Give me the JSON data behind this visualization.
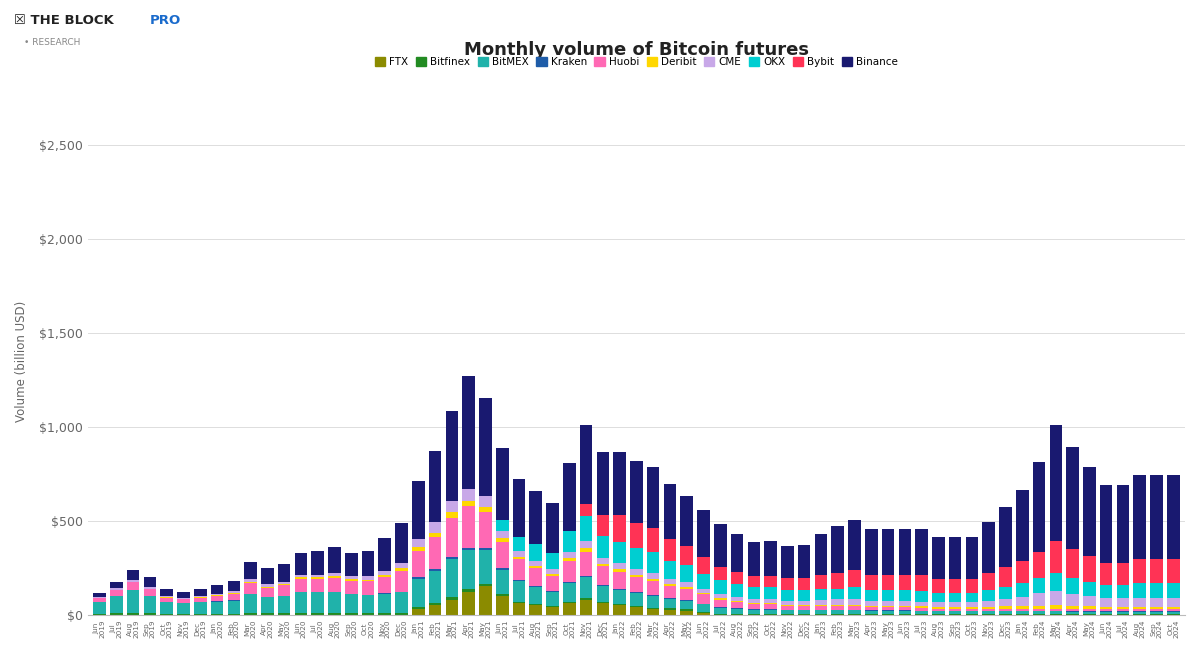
{
  "title": "Monthly volume of Bitcoin futures",
  "ylabel": "Volume (billion USD)",
  "exchanges": [
    "FTX",
    "Bitfinex",
    "BitMEX",
    "Kraken",
    "Huobi",
    "Deribit",
    "CME",
    "OKX",
    "Bybit",
    "Binance"
  ],
  "colors": {
    "FTX": "#8B8B00",
    "Bitfinex": "#228B22",
    "BitMEX": "#20B2AA",
    "Kraken": "#1E5CA8",
    "Huobi": "#FF69B4",
    "Deribit": "#FFD700",
    "CME": "#C8A8E8",
    "OKX": "#00CED1",
    "Bybit": "#FF3355",
    "Binance": "#191970"
  },
  "months": [
    "Jun\n2019",
    "Jul\n2019",
    "Aug\n2019",
    "Sep\n2019",
    "Oct\n2019",
    "Nov\n2019",
    "Dec\n2019",
    "Jan\n2020",
    "Feb\n2020",
    "Mar\n2020",
    "Apr\n2020",
    "May\n2020",
    "Jun\n2020",
    "Jul\n2020",
    "Aug\n2020",
    "Sep\n2020",
    "Oct\n2020",
    "Nov\n2020",
    "Dec\n2020",
    "Jan\n2021",
    "Feb\n2021",
    "Mar\n2021",
    "Apr\n2021",
    "May\n2021",
    "Jun\n2021",
    "Jul\n2021",
    "Aug\n2021",
    "Sep\n2021",
    "Oct\n2021",
    "Nov\n2021",
    "Dec\n2021",
    "Jan\n2022",
    "Feb\n2022",
    "Mar\n2022",
    "Apr\n2022",
    "May\n2022",
    "Jun\n2022",
    "Jul\n2022",
    "Aug\n2022",
    "Sep\n2022",
    "Oct\n2022",
    "Nov\n2022",
    "Dec\n2022",
    "Jan\n2023",
    "Feb\n2023",
    "Mar\n2023",
    "Apr\n2023",
    "May\n2023",
    "Jun\n2023",
    "Jul\n2023",
    "Aug\n2023",
    "Sep\n2023",
    "Oct\n2023",
    "Nov\n2023",
    "Dec\n2023",
    "Jan\n2024",
    "Feb\n2024",
    "Mar\n2024",
    "Apr\n2024",
    "May\n2024",
    "Jun\n2024",
    "Jul\n2024",
    "Aug\n2024",
    "Sep\n2024",
    "Oct\n2024"
  ],
  "data": {
    "FTX": [
      0,
      0,
      0,
      0,
      0,
      0,
      0,
      0,
      0,
      0,
      0,
      0,
      0,
      0,
      0,
      0,
      0,
      0,
      0,
      30,
      50,
      80,
      120,
      150,
      100,
      60,
      50,
      40,
      60,
      80,
      60,
      50,
      40,
      30,
      25,
      20,
      10,
      0,
      0,
      0,
      0,
      0,
      0,
      0,
      0,
      0,
      0,
      0,
      0,
      0,
      0,
      0,
      0,
      0,
      0,
      0,
      0,
      0,
      0,
      0,
      0,
      0,
      0,
      0,
      0
    ],
    "Bitfinex": [
      5,
      8,
      10,
      8,
      5,
      5,
      5,
      5,
      5,
      8,
      8,
      8,
      8,
      8,
      8,
      8,
      8,
      8,
      8,
      10,
      12,
      15,
      15,
      15,
      10,
      8,
      8,
      8,
      10,
      10,
      8,
      8,
      8,
      8,
      8,
      8,
      5,
      5,
      5,
      5,
      5,
      5,
      5,
      5,
      5,
      5,
      5,
      5,
      5,
      5,
      5,
      5,
      5,
      5,
      5,
      5,
      5,
      5,
      5,
      5,
      5,
      5,
      5,
      5,
      5
    ],
    "BitMEX": [
      60,
      90,
      120,
      90,
      60,
      55,
      60,
      65,
      70,
      100,
      85,
      90,
      110,
      110,
      110,
      100,
      95,
      100,
      110,
      150,
      170,
      200,
      210,
      180,
      130,
      110,
      90,
      75,
      100,
      110,
      85,
      75,
      65,
      60,
      50,
      45,
      40,
      32,
      25,
      22,
      22,
      18,
      18,
      18,
      18,
      18,
      15,
      15,
      15,
      14,
      12,
      12,
      12,
      12,
      12,
      12,
      12,
      12,
      10,
      10,
      10,
      10,
      10,
      10,
      10
    ],
    "Kraken": [
      2,
      3,
      3,
      3,
      2,
      2,
      2,
      2,
      3,
      4,
      3,
      3,
      4,
      4,
      4,
      4,
      4,
      5,
      5,
      8,
      10,
      12,
      12,
      12,
      8,
      6,
      5,
      5,
      6,
      6,
      5,
      5,
      5,
      5,
      4,
      4,
      3,
      3,
      3,
      3,
      3,
      3,
      3,
      3,
      3,
      3,
      3,
      3,
      3,
      3,
      3,
      3,
      3,
      3,
      3,
      3,
      3,
      3,
      3,
      3,
      3,
      3,
      3,
      3,
      3
    ],
    "Huobi": [
      20,
      28,
      40,
      35,
      24,
      20,
      24,
      28,
      32,
      55,
      48,
      55,
      70,
      70,
      75,
      68,
      72,
      90,
      110,
      140,
      170,
      210,
      220,
      190,
      140,
      110,
      95,
      80,
      110,
      130,
      100,
      90,
      80,
      75,
      65,
      60,
      50,
      40,
      32,
      25,
      25,
      20,
      20,
      20,
      20,
      20,
      16,
      16,
      16,
      14,
      12,
      12,
      12,
      12,
      12,
      12,
      10,
      10,
      10,
      10,
      10,
      10,
      10,
      10,
      10
    ],
    "Deribit": [
      2,
      3,
      3,
      3,
      2,
      2,
      2,
      3,
      4,
      6,
      5,
      6,
      6,
      6,
      8,
      8,
      8,
      10,
      14,
      20,
      25,
      30,
      30,
      28,
      20,
      14,
      12,
      10,
      14,
      18,
      14,
      14,
      14,
      14,
      12,
      12,
      8,
      7,
      7,
      7,
      7,
      7,
      7,
      7,
      7,
      7,
      7,
      7,
      7,
      8,
      8,
      8,
      8,
      10,
      12,
      14,
      18,
      20,
      18,
      16,
      14,
      14,
      15,
      15,
      15
    ],
    "CME": [
      5,
      8,
      8,
      8,
      6,
      5,
      6,
      8,
      10,
      15,
      12,
      12,
      15,
      15,
      18,
      18,
      18,
      22,
      28,
      45,
      55,
      60,
      65,
      58,
      38,
      30,
      25,
      25,
      32,
      40,
      32,
      32,
      32,
      32,
      28,
      25,
      22,
      22,
      22,
      22,
      22,
      22,
      22,
      25,
      28,
      28,
      25,
      25,
      25,
      25,
      25,
      25,
      25,
      32,
      40,
      50,
      65,
      75,
      65,
      55,
      45,
      45,
      45,
      45,
      45
    ],
    "OKX": [
      0,
      0,
      0,
      0,
      0,
      0,
      0,
      0,
      0,
      0,
      0,
      0,
      0,
      0,
      0,
      0,
      0,
      0,
      0,
      0,
      0,
      0,
      0,
      0,
      60,
      75,
      90,
      85,
      115,
      130,
      115,
      115,
      110,
      110,
      95,
      90,
      80,
      75,
      70,
      65,
      65,
      58,
      58,
      58,
      58,
      65,
      58,
      58,
      58,
      58,
      52,
      52,
      52,
      58,
      65,
      72,
      80,
      95,
      85,
      75,
      70,
      70,
      80,
      80,
      80
    ],
    "Bybit": [
      0,
      0,
      0,
      0,
      0,
      0,
      0,
      0,
      0,
      0,
      0,
      0,
      0,
      0,
      0,
      0,
      0,
      0,
      0,
      0,
      0,
      0,
      0,
      0,
      0,
      0,
      0,
      0,
      0,
      65,
      110,
      140,
      135,
      130,
      115,
      100,
      88,
      72,
      65,
      58,
      58,
      62,
      62,
      75,
      82,
      90,
      82,
      82,
      82,
      82,
      75,
      75,
      75,
      90,
      105,
      120,
      140,
      170,
      155,
      140,
      120,
      120,
      130,
      130,
      130
    ],
    "Binance": [
      20,
      35,
      55,
      55,
      38,
      32,
      38,
      45,
      55,
      95,
      85,
      95,
      115,
      125,
      135,
      125,
      135,
      175,
      215,
      310,
      380,
      480,
      600,
      520,
      380,
      310,
      285,
      265,
      360,
      420,
      340,
      340,
      330,
      325,
      295,
      270,
      250,
      225,
      200,
      180,
      185,
      170,
      175,
      220,
      250,
      270,
      245,
      245,
      245,
      245,
      220,
      220,
      220,
      270,
      320,
      375,
      480,
      620,
      540,
      470,
      415,
      415,
      445,
      445,
      445
    ]
  },
  "ylim": [
    0,
    2700
  ],
  "yticks": [
    0,
    500,
    1000,
    1500,
    2000,
    2500
  ],
  "background_color": "#ffffff",
  "grid_color": "#dddddd"
}
